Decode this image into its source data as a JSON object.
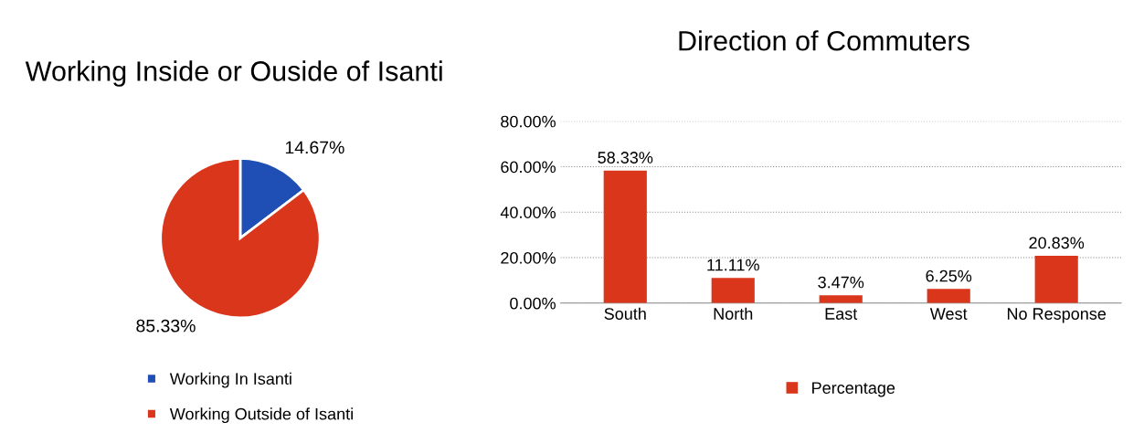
{
  "chart_data": [
    {
      "type": "pie",
      "title": "Working Inside or Ouside of Isanti",
      "categories": [
        "Working In Isanti",
        "Working Outside of Isanti"
      ],
      "values": [
        14.67,
        85.33
      ],
      "colors": [
        "#1f4fb4",
        "#d9361c"
      ],
      "value_labels": [
        "14.67%",
        "85.33%"
      ],
      "legend": "bottom"
    },
    {
      "type": "bar",
      "title": "Direction of Commuters",
      "categories": [
        "South",
        "North",
        "East",
        "West",
        "No Response"
      ],
      "series": [
        {
          "name": "Percentage",
          "color": "#d9361c",
          "values": [
            58.33,
            11.11,
            3.47,
            6.25,
            20.83
          ],
          "value_labels": [
            "58.33%",
            "11.11%",
            "3.47%",
            "6.25%",
            "20.83%"
          ]
        }
      ],
      "ylim": [
        0,
        80
      ],
      "yticks": [
        {
          "value": 0,
          "label": "0.00%"
        },
        {
          "value": 20,
          "label": "20.00%"
        },
        {
          "value": 40,
          "label": "40.00%"
        },
        {
          "value": 60,
          "label": "60.00%"
        },
        {
          "value": 80,
          "label": "80.00%"
        }
      ],
      "grid": "y",
      "legend": "bottom"
    }
  ]
}
